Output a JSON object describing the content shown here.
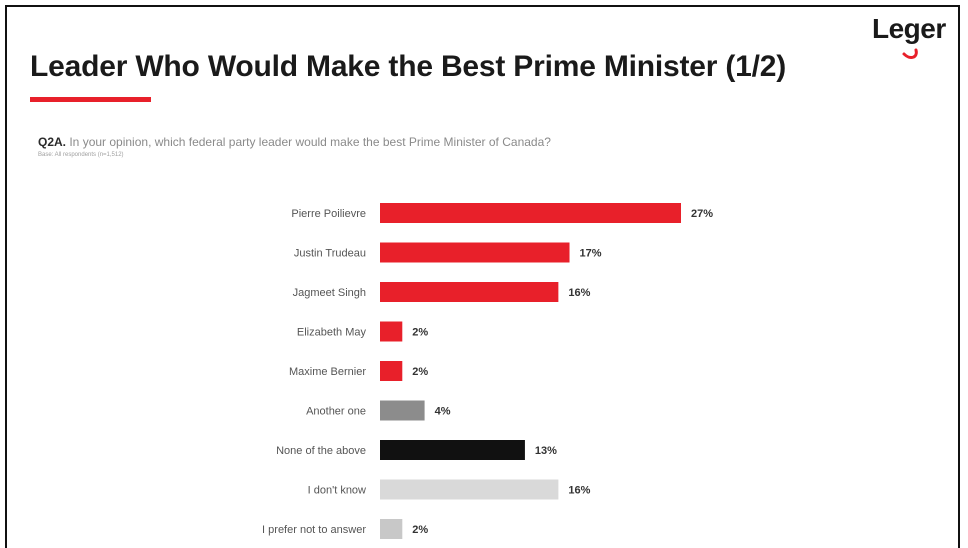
{
  "header": {
    "title": "Leader Who Would Make the Best Prime Minister (1/2)",
    "logo_text": "Leger"
  },
  "question": {
    "id": "Q2A.",
    "text": " In your opinion, which federal party leader would make the best Prime Minister of Canada?",
    "base_note": "Base: All respondents (n=1,512)"
  },
  "colors": {
    "accent_red": "#e8202a",
    "other_gray": "#8c8c8c",
    "none_black": "#111111",
    "dont_know_gray": "#d9d9d9",
    "prefer_not_gray": "#c8c8c8"
  },
  "chart_data": {
    "type": "bar",
    "orientation": "horizontal",
    "categories": [
      "Pierre Poilievre",
      "Justin Trudeau",
      "Jagmeet Singh",
      "Elizabeth May",
      "Maxime Bernier",
      "Another one",
      "None of the above",
      "I don't know",
      "I prefer not to answer"
    ],
    "values": [
      27,
      17,
      16,
      2,
      2,
      4,
      13,
      16,
      2
    ],
    "value_labels": [
      "27%",
      "17%",
      "16%",
      "2%",
      "2%",
      "4%",
      "13%",
      "16%",
      "2%"
    ],
    "bar_colors": [
      "#e8202a",
      "#e8202a",
      "#e8202a",
      "#e8202a",
      "#e8202a",
      "#8c8c8c",
      "#111111",
      "#d9d9d9",
      "#c8c8c8"
    ],
    "unit": "%",
    "xlim": [
      0,
      27
    ],
    "grid": false,
    "legend": false
  }
}
